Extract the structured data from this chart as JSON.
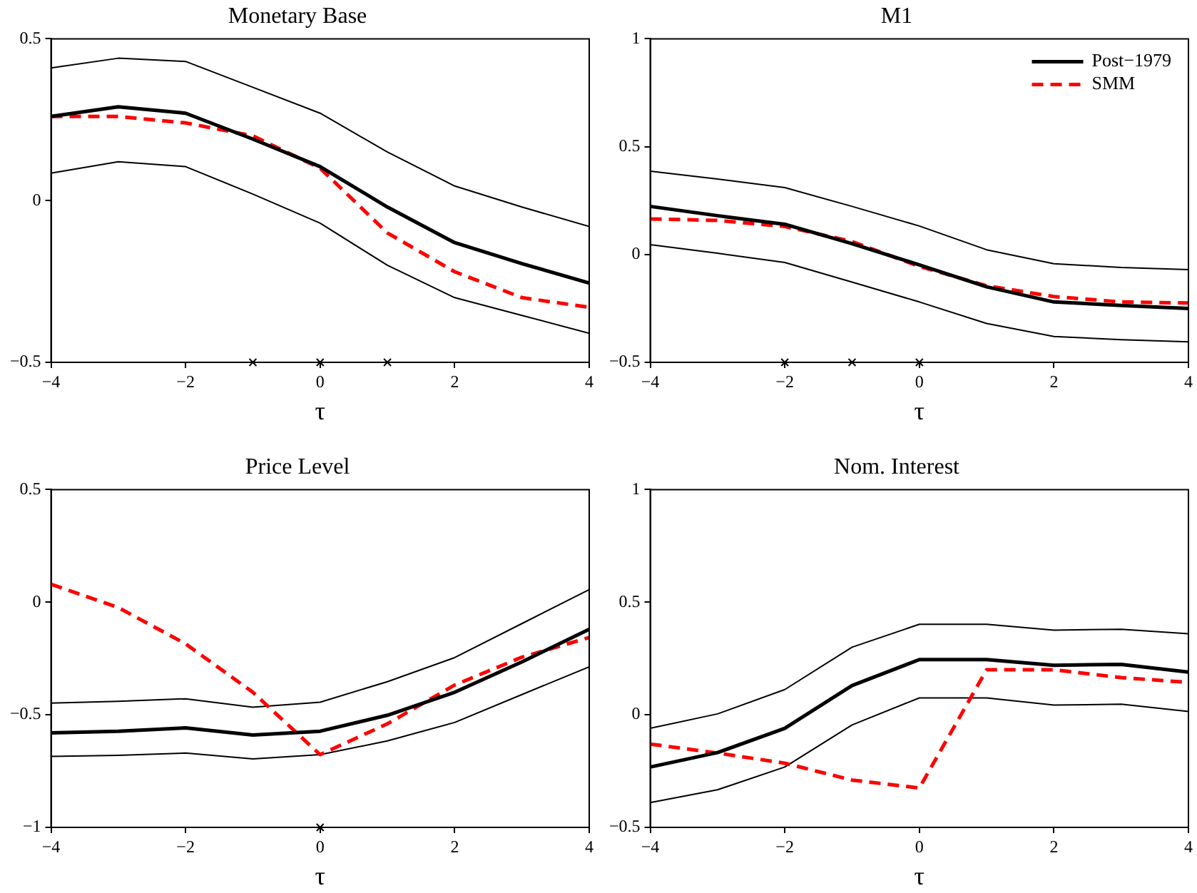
{
  "chart_data": [
    {
      "type": "line",
      "title": "Monetary Base",
      "xlabel": "τ",
      "x": [
        -4,
        -3,
        -2,
        -1,
        0,
        1,
        2,
        3,
        4
      ],
      "xlim": [
        -4,
        4
      ],
      "xticks": [
        -4,
        -2,
        0,
        2,
        4
      ],
      "ylim": [
        -0.5,
        0.5
      ],
      "yticks": [
        -0.5,
        0,
        0.5
      ],
      "marker": "none",
      "legend": false,
      "series": [
        {
          "color": "#000000",
          "line_style": "solid",
          "values": [
            0.26,
            0.29,
            0.27,
            0.19,
            0.105,
            -0.02,
            -0.13,
            -0.195,
            -0.255
          ]
        },
        {
          "color": "#ff0000",
          "line_style": "dashed",
          "values": [
            0.26,
            0.26,
            0.24,
            0.2,
            0.1,
            -0.1,
            -0.22,
            -0.3,
            -0.33
          ]
        },
        {
          "color": "#000000",
          "line_style": "solid",
          "values": [
            0.41,
            0.44,
            0.43,
            0.35,
            0.27,
            0.15,
            0.045,
            -0.02,
            -0.08
          ]
        },
        {
          "color": "#000000",
          "line_style": "solid",
          "values": [
            0.085,
            0.12,
            0.105,
            0.02,
            -0.07,
            -0.2,
            -0.3,
            -0.355,
            -0.41
          ]
        },
        {
          "type": "scatter",
          "marker": "cross",
          "color": "#000000",
          "x": [
            -1,
            0,
            1
          ],
          "values": [
            -0.5,
            -0.5,
            -0.5
          ]
        }
      ]
    },
    {
      "type": "line",
      "title": "M1",
      "xlabel": "τ",
      "x": [
        -4,
        -3,
        -2,
        -1,
        0,
        1,
        2,
        3,
        4
      ],
      "xlim": [
        -4,
        4
      ],
      "xticks": [
        -4,
        -2,
        0,
        2,
        4
      ],
      "ylim": [
        -0.5,
        1
      ],
      "yticks": [
        -0.5,
        0,
        0.5,
        1
      ],
      "marker": "none",
      "legend": "top right",
      "series": [
        {
          "name": "Post−1979",
          "color": "#000000",
          "line_style": "solid",
          "values": [
            0.223,
            0.18,
            0.14,
            0.05,
            -0.048,
            -0.15,
            -0.22,
            -0.236,
            -0.25
          ]
        },
        {
          "name": "SMM",
          "color": "#ff0000",
          "line_style": "dashed",
          "values": [
            0.165,
            0.158,
            0.13,
            0.06,
            -0.055,
            -0.145,
            -0.195,
            -0.22,
            -0.225
          ]
        },
        {
          "color": "#000000",
          "line_style": "solid",
          "values": [
            0.386,
            0.35,
            0.31,
            0.223,
            0.132,
            0.022,
            -0.043,
            -0.06,
            -0.07
          ]
        },
        {
          "color": "#000000",
          "line_style": "solid",
          "values": [
            0.046,
            0.006,
            -0.037,
            -0.128,
            -0.22,
            -0.32,
            -0.38,
            -0.395,
            -0.405
          ]
        },
        {
          "type": "scatter",
          "marker": "cross",
          "color": "#000000",
          "x": [
            -2,
            -1,
            0
          ],
          "values": [
            -0.5,
            -0.5,
            -0.5
          ]
        }
      ]
    },
    {
      "type": "line",
      "title": "Price Level",
      "xlabel": "τ",
      "x": [
        -4,
        -3,
        -2,
        -1,
        0,
        1,
        2,
        3,
        4
      ],
      "xlim": [
        -4,
        4
      ],
      "xticks": [
        -4,
        -2,
        0,
        2,
        4
      ],
      "ylim": [
        -1,
        0.5
      ],
      "yticks": [
        -1,
        -0.5,
        0,
        0.5
      ],
      "marker": "none",
      "legend": false,
      "series": [
        {
          "color": "#000000",
          "line_style": "solid",
          "values": [
            -0.58,
            -0.573,
            -0.558,
            -0.59,
            -0.573,
            -0.502,
            -0.4,
            -0.265,
            -0.12
          ]
        },
        {
          "color": "#ff0000",
          "line_style": "dashed",
          "values": [
            0.08,
            -0.024,
            -0.185,
            -0.4,
            -0.677,
            -0.54,
            -0.368,
            -0.244,
            -0.157
          ]
        },
        {
          "color": "#000000",
          "line_style": "solid",
          "values": [
            -0.448,
            -0.44,
            -0.429,
            -0.466,
            -0.444,
            -0.353,
            -0.246,
            -0.095,
            0.056
          ]
        },
        {
          "color": "#000000",
          "line_style": "solid",
          "values": [
            -0.685,
            -0.68,
            -0.67,
            -0.696,
            -0.677,
            -0.616,
            -0.534,
            -0.41,
            -0.287
          ]
        },
        {
          "type": "scatter",
          "marker": "cross",
          "color": "#000000",
          "x": [
            0
          ],
          "values": [
            -1
          ]
        }
      ]
    },
    {
      "type": "line",
      "title": "Nom. Interest",
      "xlabel": "τ",
      "x": [
        -4,
        -3,
        -2,
        -1,
        0,
        1,
        2,
        3,
        4
      ],
      "xlim": [
        -4,
        4
      ],
      "xticks": [
        -4,
        -2,
        0,
        2,
        4
      ],
      "ylim": [
        -0.5,
        1
      ],
      "yticks": [
        -0.5,
        0,
        0.5,
        1
      ],
      "marker": "none",
      "legend": false,
      "series": [
        {
          "color": "#000000",
          "line_style": "solid",
          "values": [
            -0.232,
            -0.168,
            -0.06,
            0.13,
            0.245,
            0.245,
            0.22,
            0.224,
            0.19
          ]
        },
        {
          "color": "#ff0000",
          "line_style": "dashed",
          "values": [
            -0.13,
            -0.17,
            -0.215,
            -0.29,
            -0.325,
            0.2,
            0.2,
            0.165,
            0.144
          ]
        },
        {
          "color": "#000000",
          "line_style": "solid",
          "values": [
            -0.06,
            0.004,
            0.112,
            0.3,
            0.402,
            0.402,
            0.376,
            0.38,
            0.36
          ]
        },
        {
          "color": "#000000",
          "line_style": "solid",
          "values": [
            -0.39,
            -0.333,
            -0.232,
            -0.045,
            0.075,
            0.075,
            0.043,
            0.047,
            0.015
          ]
        }
      ]
    }
  ]
}
